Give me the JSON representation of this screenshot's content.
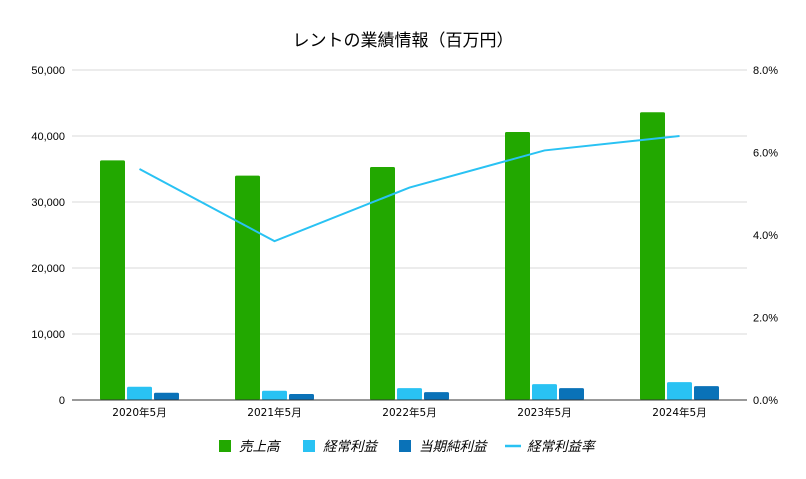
{
  "chart_data": {
    "type": "bar",
    "title": "レントの業績情報（百万円）",
    "categories": [
      "2020年5月",
      "2021年5月",
      "2022年5月",
      "2023年5月",
      "2024年5月"
    ],
    "series": [
      {
        "name": "売上高",
        "kind": "bar",
        "axis": "left",
        "color": "#22a800",
        "values": [
          36300,
          34000,
          35300,
          40600,
          43600
        ]
      },
      {
        "name": "経常利益",
        "kind": "bar",
        "axis": "left",
        "color": "#29c2f3",
        "values": [
          2000,
          1400,
          1800,
          2400,
          2700
        ]
      },
      {
        "name": "当期純利益",
        "kind": "bar",
        "axis": "left",
        "color": "#0a72b8",
        "values": [
          1100,
          900,
          1200,
          1800,
          2100
        ]
      },
      {
        "name": "経常利益率",
        "kind": "line",
        "axis": "right",
        "color": "#29c2f3",
        "values": [
          5.6,
          3.85,
          5.15,
          6.05,
          6.4
        ]
      }
    ],
    "y_left": {
      "min": 0,
      "max": 50000,
      "ticks": [
        "0",
        "10,000",
        "20,000",
        "30,000",
        "40,000",
        "50,000"
      ]
    },
    "y_right": {
      "min": 0,
      "max": 8,
      "ticks": [
        "0.0%",
        "2.0%",
        "4.0%",
        "6.0%",
        "8.0%"
      ]
    },
    "grid": true,
    "legend_position": "bottom"
  }
}
